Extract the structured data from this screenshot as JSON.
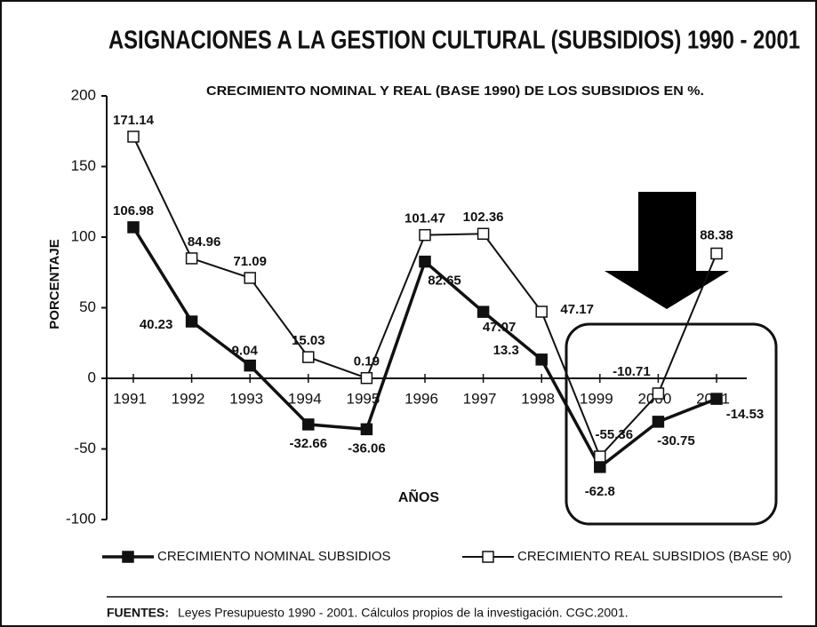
{
  "chart_data": {
    "type": "line",
    "title": "ASIGNACIONES A LA GESTION CULTURAL (SUBSIDIOS) 1990 - 2001",
    "subtitle": "CRECIMIENTO NOMINAL Y REAL (BASE 1990) DE LOS SUBSIDIOS EN %.",
    "y_label": "PORCENTAJE",
    "x_label": "AÑOS",
    "categories": [
      "1991",
      "1992",
      "1993",
      "1994",
      "1995",
      "1996",
      "1997",
      "1998",
      "1999",
      "2000",
      "2001"
    ],
    "series": [
      {
        "name": "CRECIMIENTO NOMINAL SUBSIDIOS",
        "color": "#111111",
        "marker_fill": "#111111",
        "values": [
          106.98,
          40.23,
          9.04,
          -32.66,
          -36.06,
          82.65,
          47.07,
          13.3,
          -62.8,
          -30.75,
          -14.53
        ]
      },
      {
        "name": "CRECIMIENTO REAL SUBSIDIOS (BASE 90)",
        "color": "#111111",
        "marker_fill": "#ffffff",
        "values": [
          171.14,
          84.96,
          71.09,
          15.03,
          0.19,
          101.47,
          102.36,
          47.17,
          -55.36,
          -10.71,
          88.38
        ]
      }
    ],
    "ylim": [
      -100,
      200
    ],
    "yticks": [
      -100,
      -50,
      0,
      50,
      100,
      150,
      200
    ],
    "grid": false,
    "source_label": "FUENTES:",
    "source": "Leyes Presupuesto 1990 - 2001. Cálculos propios de la investigación. CGC.2001."
  }
}
